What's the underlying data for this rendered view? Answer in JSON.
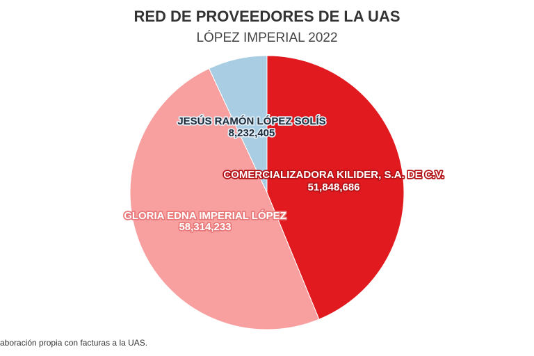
{
  "chart_data": {
    "type": "pie",
    "title": "RED DE PROVEEDORES DE LA UAS",
    "subtitle": "LÓPEZ IMPERIAL 2022",
    "categories": [
      "COMERCIALIZADORA KILIDER, S.A. DE C.V.",
      "GLORIA EDNA IMPERIAL LÓPEZ",
      "JESÚS RAMÓN LÓPEZ SOLÍS"
    ],
    "values": [
      51848686,
      58314233,
      8232405
    ],
    "value_labels": [
      "51,848,686",
      "58,314,233",
      "8,232,405"
    ],
    "colors": [
      "#e01a1f",
      "#f8a09f",
      "#a9cee4"
    ],
    "footer": "aboración propia con facturas a la UAS."
  }
}
